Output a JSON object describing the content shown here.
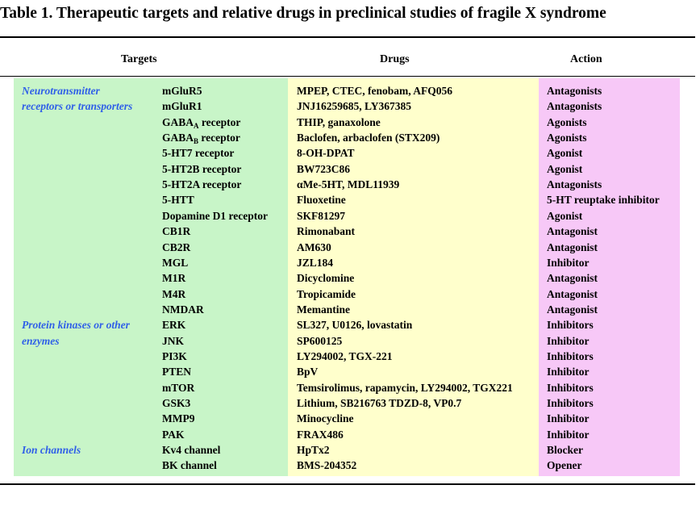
{
  "title": "Table 1.  Therapeutic targets and relative drugs in preclinical studies of fragile X syndrome",
  "table": {
    "header": [
      "Targets",
      "Drugs",
      "Action"
    ],
    "groups": [
      {
        "row": 0,
        "lines": [
          "Neurotransmitter",
          "receptors or transporters"
        ]
      },
      {
        "row": 15,
        "lines": [
          "Protein kinases or other",
          "enzymes"
        ]
      },
      {
        "row": 23,
        "lines": [
          "Ion channels"
        ]
      }
    ],
    "rows": [
      [
        "mGluR5",
        "MPEP, CTEC, fenobam, AFQ056",
        "Antagonists"
      ],
      [
        "mGluR1",
        "JNJ16259685, LY367385",
        "Antagonists"
      ],
      [
        {
          "base": "GABA",
          "sub": "A",
          "tail": " receptor"
        },
        "THIP, ganaxolone",
        "Agonists"
      ],
      [
        {
          "base": "GABA",
          "sub": "B",
          "tail": " receptor"
        },
        "Baclofen, arbaclofen (STX209)",
        "Agonists"
      ],
      [
        "5-HT7 receptor",
        "8-OH-DPAT",
        "Agonist"
      ],
      [
        "5-HT2B receptor",
        "BW723C86",
        "Agonist"
      ],
      [
        "5-HT2A receptor",
        "αMe-5HT, MDL11939",
        "Antagonists"
      ],
      [
        "5-HTT",
        "Fluoxetine",
        "5-HT reuptake inhibitor"
      ],
      [
        "Dopamine D1 receptor",
        "SKF81297",
        "Agonist"
      ],
      [
        "CB1R",
        "Rimonabant",
        "Antagonist"
      ],
      [
        "CB2R",
        "AM630",
        "Antagonist"
      ],
      [
        "MGL",
        "JZL184",
        "Inhibitor"
      ],
      [
        "M1R",
        "Dicyclomine",
        "Antagonist"
      ],
      [
        "M4R",
        "Tropicamide",
        "Antagonist"
      ],
      [
        "NMDAR",
        "Memantine",
        "Antagonist"
      ],
      [
        "ERK",
        "SL327, U0126, lovastatin",
        "Inhibitors"
      ],
      [
        "JNK",
        "SP600125",
        "Inhibitor"
      ],
      [
        "PI3K",
        "LY294002, TGX-221",
        "Inhibitors"
      ],
      [
        "PTEN",
        "BpV",
        "Inhibitor"
      ],
      [
        "mTOR",
        "Temsirolimus, rapamycin, LY294002, TGX221",
        "Inhibitors"
      ],
      [
        "GSK3",
        "Lithium, SB216763 TDZD-8, VP0.7",
        "Inhibitors"
      ],
      [
        "MMP9",
        "Minocycline",
        "Inhibitor"
      ],
      [
        "PAK",
        "FRAX486",
        "Inhibitor"
      ],
      [
        "Kv4 channel",
        "HpTx2",
        "Blocker"
      ],
      [
        "BK channel",
        "BMS-204352",
        "Opener"
      ]
    ]
  }
}
